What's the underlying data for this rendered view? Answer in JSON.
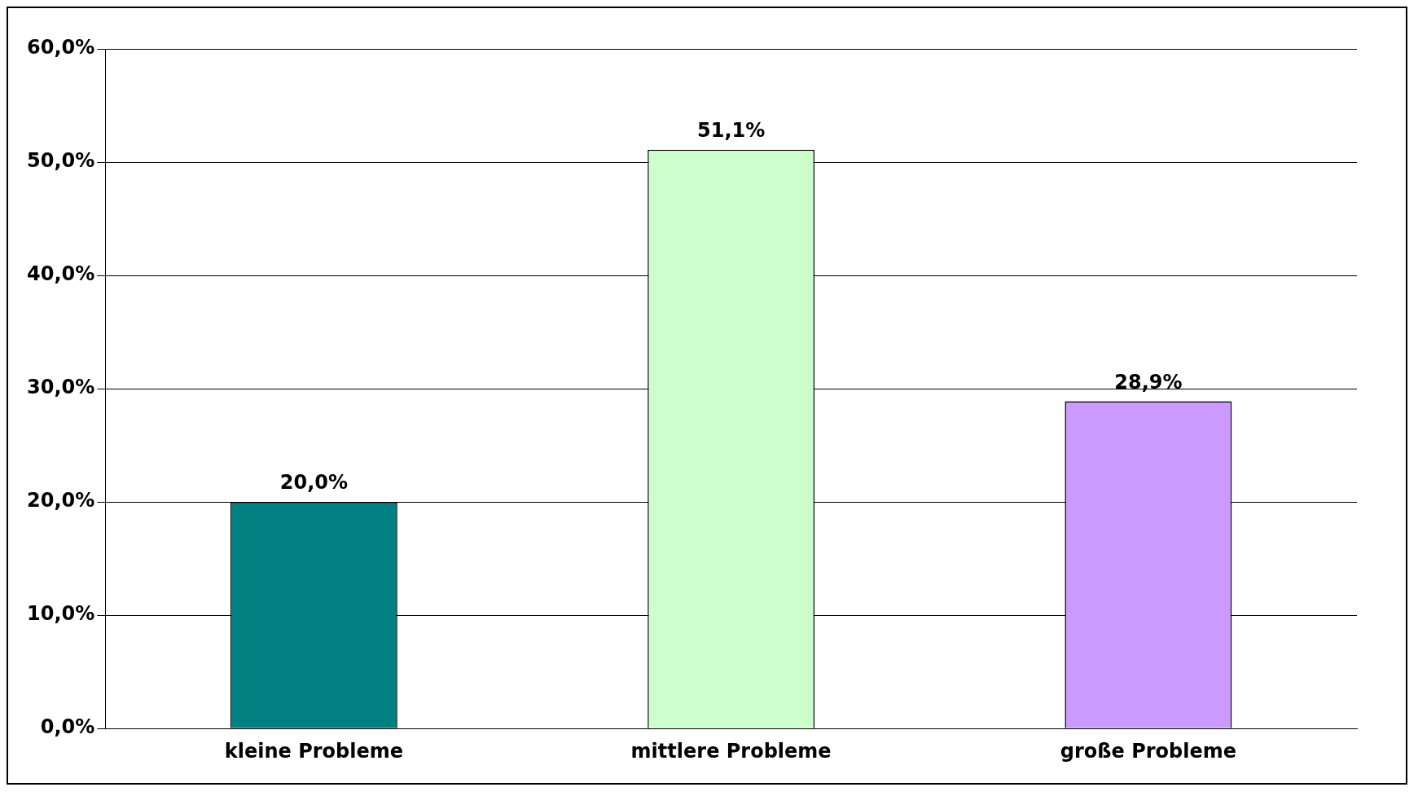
{
  "chart_data": {
    "type": "bar",
    "categories": [
      "kleine Probleme",
      "mittlere Probleme",
      "große Probleme"
    ],
    "values": [
      20.0,
      51.1,
      28.9
    ],
    "colors": [
      "#008080",
      "#ccffcc",
      "#cc99ff"
    ],
    "value_labels": [
      "20,0%",
      "51,1%",
      "28,9%"
    ],
    "ylim": [
      0,
      60
    ],
    "yticks": [
      {
        "value": 0,
        "label": "0,0%"
      },
      {
        "value": 10,
        "label": "10,0%"
      },
      {
        "value": 20,
        "label": "20,0%"
      },
      {
        "value": 30,
        "label": "30,0%"
      },
      {
        "value": 40,
        "label": "40,0%"
      },
      {
        "value": 50,
        "label": "50,0%"
      },
      {
        "value": 60,
        "label": "60,0%"
      }
    ],
    "grid": "y"
  }
}
